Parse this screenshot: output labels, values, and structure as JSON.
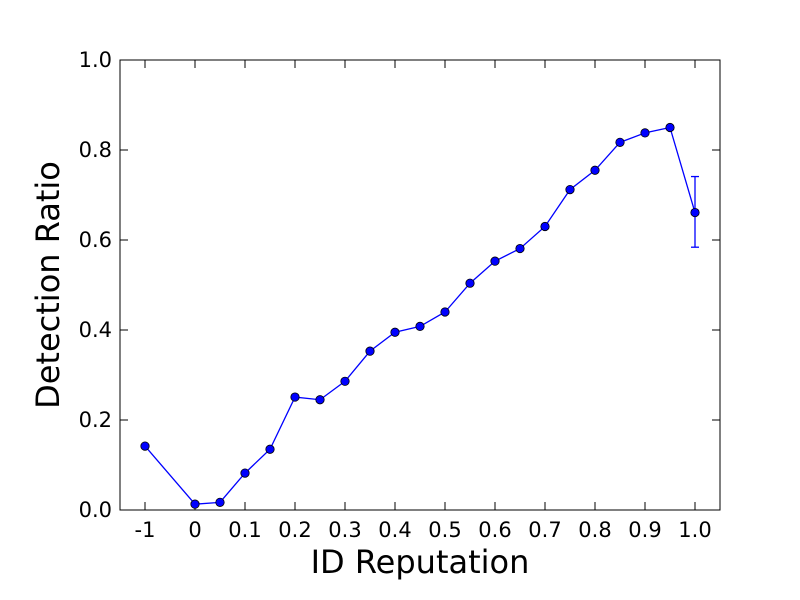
{
  "chart_data": {
    "type": "line",
    "title": "",
    "xlabel": "ID Reputation",
    "ylabel": "Detection Ratio",
    "categories": [
      "-1",
      "0",
      "0.1",
      "0.2",
      "0.3",
      "0.4",
      "0.5",
      "0.6",
      "0.7",
      "0.8",
      "0.9",
      "1.0"
    ],
    "ylim": [
      0,
      1.0
    ],
    "xlim": [
      -0.5,
      11.5
    ],
    "yticks": [
      {
        "value": 0.0,
        "label": "0.0"
      },
      {
        "value": 0.2,
        "label": "0.2"
      },
      {
        "value": 0.4,
        "label": "0.4"
      },
      {
        "value": 0.6,
        "label": "0.6"
      },
      {
        "value": 0.8,
        "label": "0.8"
      },
      {
        "value": 1.0,
        "label": "1.0"
      }
    ],
    "grid": false,
    "series": [
      {
        "color": "#0000ff",
        "marker": "circle",
        "points": [
          {
            "x": 0.0,
            "y": 0.142
          },
          {
            "x": 1.0,
            "y": 0.013
          },
          {
            "x": 1.5,
            "y": 0.017
          },
          {
            "x": 2.0,
            "y": 0.082
          },
          {
            "x": 2.5,
            "y": 0.135
          },
          {
            "x": 3.0,
            "y": 0.251
          },
          {
            "x": 3.5,
            "y": 0.245
          },
          {
            "x": 4.0,
            "y": 0.286
          },
          {
            "x": 4.5,
            "y": 0.353
          },
          {
            "x": 5.0,
            "y": 0.395
          },
          {
            "x": 5.5,
            "y": 0.408
          },
          {
            "x": 6.0,
            "y": 0.44
          },
          {
            "x": 6.5,
            "y": 0.504
          },
          {
            "x": 7.0,
            "y": 0.553
          },
          {
            "x": 7.5,
            "y": 0.581
          },
          {
            "x": 8.0,
            "y": 0.63
          },
          {
            "x": 8.5,
            "y": 0.712
          },
          {
            "x": 9.0,
            "y": 0.755
          },
          {
            "x": 9.5,
            "y": 0.817
          },
          {
            "x": 10.0,
            "y": 0.838
          },
          {
            "x": 10.5,
            "y": 0.85
          },
          {
            "x": 11.0,
            "y": 0.661,
            "err_low": 0.584,
            "err_high": 0.741
          }
        ]
      }
    ]
  }
}
